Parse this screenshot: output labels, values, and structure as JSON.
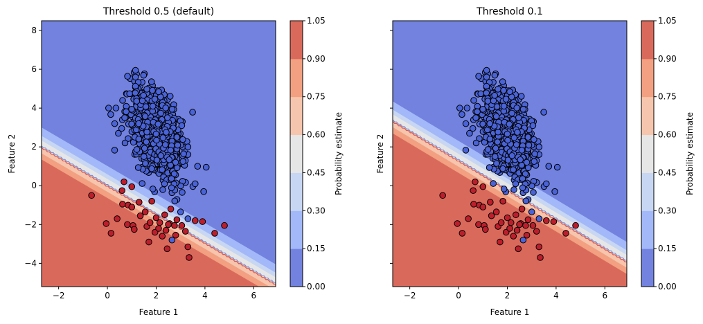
{
  "figure": {
    "background": "#ffffff"
  },
  "chart_data": [
    {
      "type": "scatter",
      "title": "Threshold 0.5 (default)",
      "xlabel": "Feature 1",
      "ylabel": "Feature 2",
      "xlim": [
        -2.7,
        6.9
      ],
      "ylim": [
        -5.2,
        8.5
      ],
      "xticks": [
        -2,
        0,
        2,
        4,
        6
      ],
      "yticks": [
        -4,
        -2,
        0,
        2,
        4,
        6,
        8
      ],
      "threshold": 0.5,
      "decision_boundary": {
        "x": [
          -2.7,
          6.9
        ],
        "y": [
          1.95,
          -5.1
        ]
      },
      "colorbar": {
        "label": "Probability estimate",
        "ticks": [
          "0.00",
          "0.15",
          "0.30",
          "0.45",
          "0.60",
          "0.75",
          "0.90",
          "1.05"
        ],
        "band_colors": [
          "#7282de",
          "#a2b8f8",
          "#c7d6f2",
          "#e6e6e6",
          "#f6c5ad",
          "#f2a081",
          "#d96a5b"
        ]
      },
      "legend": "none"
    },
    {
      "type": "scatter",
      "title": "Threshold 0.1",
      "xlabel": "Feature 1",
      "ylabel": "Feature 2",
      "xlim": [
        -2.7,
        6.9
      ],
      "ylim": [
        -5.2,
        8.5
      ],
      "xticks": [
        -2,
        0,
        2,
        4,
        6
      ],
      "yticks": [
        -4,
        -2,
        0,
        2,
        4,
        6,
        8
      ],
      "threshold": 0.1,
      "decision_boundary": {
        "x": [
          -2.7,
          6.9
        ],
        "y": [
          3.3,
          -3.95
        ]
      },
      "colorbar": {
        "label": "Probability estimate",
        "ticks": [
          "0.00",
          "0.15",
          "0.30",
          "0.45",
          "0.60",
          "0.75",
          "0.90",
          "1.05"
        ],
        "band_colors": [
          "#7282de",
          "#a2b8f8",
          "#c7d6f2",
          "#e6e6e6",
          "#f6c5ad",
          "#f2a081",
          "#d96a5b"
        ]
      },
      "legend": "none"
    }
  ],
  "shared_data": {
    "class_colors": {
      "negative": "#4a63d6",
      "positive": "#bd1e2c"
    },
    "positive_points": [
      [
        -0.65,
        -0.5
      ],
      [
        0.15,
        -2.45
      ],
      [
        -0.05,
        -1.95
      ],
      [
        0.4,
        -1.7
      ],
      [
        0.6,
        -0.25
      ],
      [
        0.68,
        0.2
      ],
      [
        0.62,
        -0.95
      ],
      [
        0.82,
        -2.0
      ],
      [
        0.85,
        -1.0
      ],
      [
        1.0,
        -0.05
      ],
      [
        1.0,
        -1.1
      ],
      [
        1.05,
        -2.05
      ],
      [
        1.1,
        -2.25
      ],
      [
        1.3,
        -0.85
      ],
      [
        1.35,
        -1.55
      ],
      [
        1.55,
        -1.35
      ],
      [
        1.62,
        -2.1
      ],
      [
        1.7,
        -2.9
      ],
      [
        1.75,
        -1.9
      ],
      [
        1.82,
        -0.8
      ],
      [
        1.95,
        -2.4
      ],
      [
        2.0,
        -1.65
      ],
      [
        2.1,
        -2.2
      ],
      [
        2.15,
        -1.9
      ],
      [
        2.25,
        -2.6
      ],
      [
        2.35,
        -1.5
      ],
      [
        2.4,
        -2.3
      ],
      [
        2.45,
        -3.25
      ],
      [
        2.55,
        -1.95
      ],
      [
        2.6,
        -1.2
      ],
      [
        2.75,
        -2.05
      ],
      [
        2.8,
        -2.55
      ],
      [
        2.85,
        -1.75
      ],
      [
        3.05,
        -2.05
      ],
      [
        3.2,
        -2.35
      ],
      [
        3.3,
        -3.15
      ],
      [
        3.35,
        -3.7
      ],
      [
        3.6,
        -1.8
      ],
      [
        3.9,
        -1.85
      ],
      [
        4.4,
        -2.45
      ],
      [
        4.8,
        -2.05
      ],
      [
        2.5,
        -2.0
      ]
    ],
    "negative_outlier_points": [
      [
        2.65,
        -2.8
      ]
    ]
  }
}
